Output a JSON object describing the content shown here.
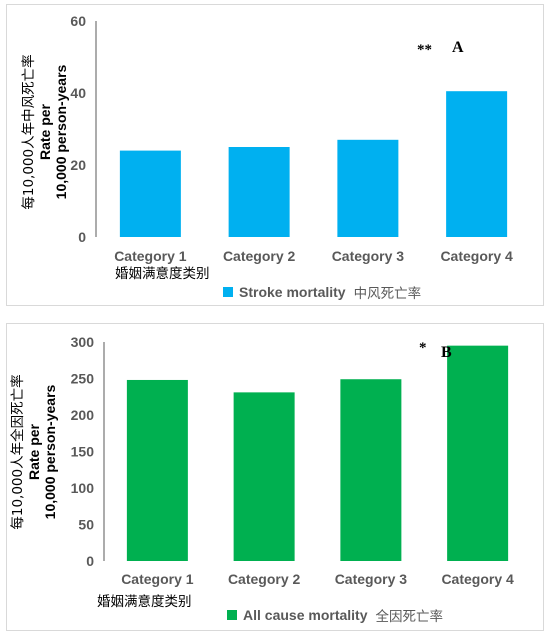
{
  "chart_data": [
    {
      "type": "bar",
      "panel_letter": "A",
      "significance": "**",
      "categories": [
        "Category 1",
        "Category 2",
        "Category 3",
        "Category 4"
      ],
      "category_group_label": "婚姻满意度类别",
      "series": [
        {
          "name": "Stroke mortality",
          "name_zh": "中风死亡率",
          "color": "#00b0f0",
          "values": [
            24,
            25,
            27,
            40.5
          ]
        }
      ],
      "ylabel_lines": [
        "每10,000人年中风死亡率",
        "Rate per",
        "10,000 person-years"
      ],
      "ylim": [
        0,
        60
      ],
      "yticks": [
        0,
        20,
        40,
        60
      ],
      "legend_position": "bottom",
      "grid": false
    },
    {
      "type": "bar",
      "panel_letter": "B",
      "significance": "*",
      "categories": [
        "Category 1",
        "Category 2",
        "Category 3",
        "Category 4"
      ],
      "category_group_label": "婚姻满意度类别",
      "series": [
        {
          "name": "All cause mortality",
          "name_zh": "全因死亡率",
          "color": "#00b050",
          "values": [
            248,
            231,
            249,
            295
          ]
        }
      ],
      "ylabel_lines": [
        "每10,000人年全因死亡率",
        "Rate per",
        "10,000 person-years"
      ],
      "ylim": [
        0,
        300
      ],
      "yticks": [
        0,
        50,
        100,
        150,
        200,
        250,
        300
      ],
      "legend_position": "bottom",
      "grid": false
    }
  ]
}
